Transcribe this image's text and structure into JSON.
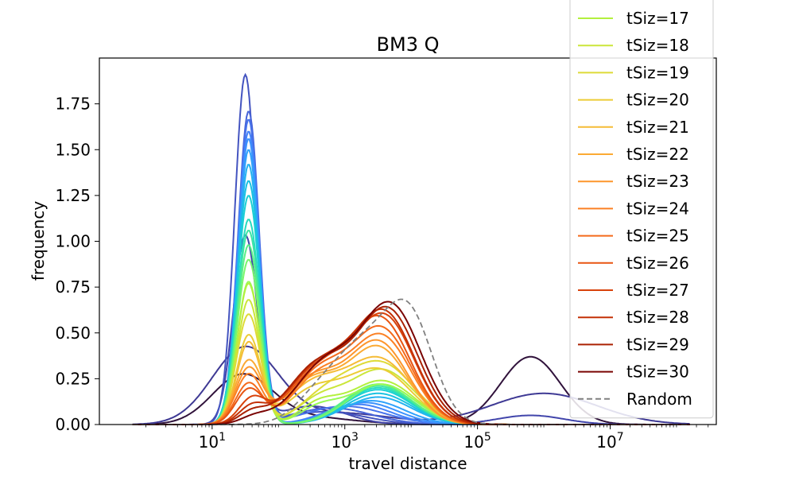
{
  "chart_data": {
    "type": "line",
    "title": "BM3 Q",
    "xlabel": "travel distance",
    "ylabel": "frequency",
    "xscale": "log",
    "xlim_log10": [
      -0.7,
      8.6
    ],
    "ylim": [
      0,
      2.0
    ],
    "x_ticks": [
      {
        "value": 10,
        "base": "10",
        "exp": "1"
      },
      {
        "value": 1000,
        "base": "10",
        "exp": "3"
      },
      {
        "value": 100000,
        "base": "10",
        "exp": "5"
      },
      {
        "value": 10000000,
        "base": "10",
        "exp": "7"
      }
    ],
    "y_ticks": [
      "0.00",
      "0.25",
      "0.50",
      "0.75",
      "1.00",
      "1.25",
      "1.50",
      "1.75"
    ],
    "grid": false,
    "legend_placement": "top-right",
    "legend_entries": [
      {
        "name": "tSiz=17",
        "color": "#b3f03e",
        "dashed": false
      },
      {
        "name": "tSiz=18",
        "color": "#cbe63a",
        "dashed": false
      },
      {
        "name": "tSiz=19",
        "color": "#dedb37",
        "dashed": false
      },
      {
        "name": "tSiz=20",
        "color": "#eccc36",
        "dashed": false
      },
      {
        "name": "tSiz=21",
        "color": "#f5bc36",
        "dashed": false
      },
      {
        "name": "tSiz=22",
        "color": "#fbaa33",
        "dashed": false
      },
      {
        "name": "tSiz=23",
        "color": "#fd962c",
        "dashed": false
      },
      {
        "name": "tSiz=24",
        "color": "#fb8024",
        "dashed": false
      },
      {
        "name": "tSiz=25",
        "color": "#f46a1b",
        "dashed": false
      },
      {
        "name": "tSiz=26",
        "color": "#e85512",
        "dashed": false
      },
      {
        "name": "tSiz=27",
        "color": "#d8420b",
        "dashed": false
      },
      {
        "name": "tSiz=28",
        "color": "#c43106",
        "dashed": false
      },
      {
        "name": "tSiz=29",
        "color": "#ab2203",
        "dashed": false
      },
      {
        "name": "tSiz=30",
        "color": "#7a0403",
        "dashed": false
      },
      {
        "name": "Random",
        "color": "#808080",
        "dashed": true
      }
    ],
    "series": [
      {
        "color": "#30123b",
        "peaks": [
          [
            1.45,
            0.45,
            0.26
          ],
          [
            2.4,
            0.7,
            0.04
          ],
          [
            5.8,
            0.45,
            0.37
          ]
        ]
      },
      {
        "color": "#3e3994",
        "peaks": [
          [
            1.5,
            0.5,
            0.42
          ],
          [
            3.0,
            0.7,
            0.06
          ],
          [
            6.0,
            0.8,
            0.17
          ]
        ]
      },
      {
        "color": "#4145ab",
        "peaks": [
          [
            1.5,
            0.18,
            1.02
          ],
          [
            2.5,
            0.5,
            0.1
          ],
          [
            5.8,
            0.5,
            0.05
          ]
        ]
      },
      {
        "color": "#4454c0",
        "peaks": [
          [
            1.5,
            0.16,
            1.9
          ],
          [
            2.7,
            0.6,
            0.07
          ]
        ]
      },
      {
        "color": "#4663d8",
        "peaks": [
          [
            1.55,
            0.16,
            1.7
          ],
          [
            2.8,
            0.6,
            0.09
          ]
        ]
      },
      {
        "color": "#4673ec",
        "peaks": [
          [
            1.55,
            0.16,
            1.66
          ],
          [
            3.0,
            0.6,
            0.1
          ]
        ]
      },
      {
        "color": "#4382f8",
        "peaks": [
          [
            1.55,
            0.16,
            1.6
          ],
          [
            3.2,
            0.5,
            0.11
          ]
        ]
      },
      {
        "color": "#3b92fd",
        "peaks": [
          [
            1.55,
            0.16,
            1.56
          ],
          [
            3.3,
            0.5,
            0.12
          ]
        ]
      },
      {
        "color": "#2fa2fb",
        "peaks": [
          [
            1.55,
            0.16,
            1.5
          ],
          [
            3.4,
            0.5,
            0.13
          ]
        ]
      },
      {
        "color": "#24b3f0",
        "peaks": [
          [
            1.55,
            0.16,
            1.42
          ],
          [
            3.5,
            0.5,
            0.15
          ]
        ]
      },
      {
        "color": "#1ac2e1",
        "peaks": [
          [
            1.55,
            0.17,
            1.33
          ],
          [
            3.5,
            0.5,
            0.17
          ]
        ]
      },
      {
        "color": "#1bd0d4",
        "peaks": [
          [
            1.55,
            0.17,
            1.25
          ],
          [
            3.5,
            0.5,
            0.19
          ]
        ]
      },
      {
        "color": "#26dcbf",
        "peaks": [
          [
            1.55,
            0.17,
            1.12
          ],
          [
            3.5,
            0.5,
            0.2
          ]
        ]
      },
      {
        "color": "#3ee6a3",
        "peaks": [
          [
            1.55,
            0.17,
            1.06
          ],
          [
            3.5,
            0.5,
            0.21
          ]
        ]
      },
      {
        "color": "#5aef86",
        "peaks": [
          [
            1.55,
            0.17,
            0.98
          ],
          [
            3.5,
            0.5,
            0.22
          ]
        ]
      },
      {
        "color": "#7af66c",
        "peaks": [
          [
            1.55,
            0.17,
            0.9
          ],
          [
            3.55,
            0.5,
            0.22
          ]
        ]
      },
      {
        "color": "#98fa55",
        "peaks": [
          [
            1.55,
            0.17,
            0.78
          ],
          [
            3.55,
            0.5,
            0.22
          ],
          [
            2.6,
            0.3,
            0.08
          ]
        ]
      },
      {
        "color": "#b3f03e",
        "peaks": [
          [
            1.55,
            0.17,
            0.77
          ],
          [
            3.55,
            0.5,
            0.24
          ],
          [
            2.6,
            0.3,
            0.1
          ]
        ]
      },
      {
        "color": "#cbe63a",
        "peaks": [
          [
            1.55,
            0.17,
            0.68
          ],
          [
            3.55,
            0.5,
            0.3
          ],
          [
            2.6,
            0.35,
            0.12
          ]
        ]
      },
      {
        "color": "#dedb37",
        "peaks": [
          [
            1.55,
            0.18,
            0.6
          ],
          [
            3.55,
            0.5,
            0.33
          ],
          [
            2.7,
            0.4,
            0.14
          ]
        ]
      },
      {
        "color": "#eccc36",
        "peaks": [
          [
            1.55,
            0.18,
            0.48
          ],
          [
            3.5,
            0.5,
            0.3
          ],
          [
            2.5,
            0.4,
            0.17
          ]
        ]
      },
      {
        "color": "#f5bc36",
        "peaks": [
          [
            1.55,
            0.18,
            0.44
          ],
          [
            3.5,
            0.5,
            0.36
          ],
          [
            2.5,
            0.4,
            0.2
          ]
        ]
      },
      {
        "color": "#fbaa33",
        "peaks": [
          [
            1.55,
            0.2,
            0.34
          ],
          [
            3.5,
            0.45,
            0.42
          ],
          [
            2.5,
            0.4,
            0.23
          ]
        ]
      },
      {
        "color": "#fd962c",
        "peaks": [
          [
            1.55,
            0.2,
            0.3
          ],
          [
            3.5,
            0.45,
            0.45
          ],
          [
            2.5,
            0.4,
            0.24
          ]
        ]
      },
      {
        "color": "#fb8024",
        "peaks": [
          [
            1.55,
            0.2,
            0.27
          ],
          [
            3.55,
            0.45,
            0.48
          ],
          [
            2.6,
            0.4,
            0.25
          ]
        ]
      },
      {
        "color": "#f46a1b",
        "peaks": [
          [
            1.55,
            0.2,
            0.22
          ],
          [
            3.55,
            0.45,
            0.52
          ],
          [
            2.6,
            0.4,
            0.27
          ]
        ]
      },
      {
        "color": "#e85512",
        "peaks": [
          [
            1.55,
            0.2,
            0.18
          ],
          [
            3.55,
            0.45,
            0.56
          ],
          [
            2.6,
            0.45,
            0.28
          ]
        ]
      },
      {
        "color": "#d8420b",
        "peaks": [
          [
            1.6,
            0.2,
            0.13
          ],
          [
            3.6,
            0.45,
            0.58
          ],
          [
            2.6,
            0.45,
            0.3
          ]
        ]
      },
      {
        "color": "#c43106",
        "peaks": [
          [
            1.6,
            0.2,
            0.09
          ],
          [
            3.6,
            0.45,
            0.6
          ],
          [
            2.6,
            0.45,
            0.31
          ]
        ]
      },
      {
        "color": "#ab2203",
        "peaks": [
          [
            1.6,
            0.2,
            0.06
          ],
          [
            3.65,
            0.45,
            0.62
          ],
          [
            2.6,
            0.45,
            0.32
          ]
        ]
      },
      {
        "color": "#7a0403",
        "peaks": [
          [
            1.65,
            0.22,
            0.04
          ],
          [
            3.7,
            0.45,
            0.64
          ],
          [
            2.7,
            0.45,
            0.32
          ]
        ]
      },
      {
        "color": "#808080",
        "dashed": true,
        "peaks": [
          [
            3.3,
            0.55,
            0.45
          ],
          [
            4.0,
            0.35,
            0.45
          ],
          [
            2.5,
            0.3,
            0.05
          ]
        ]
      }
    ]
  }
}
